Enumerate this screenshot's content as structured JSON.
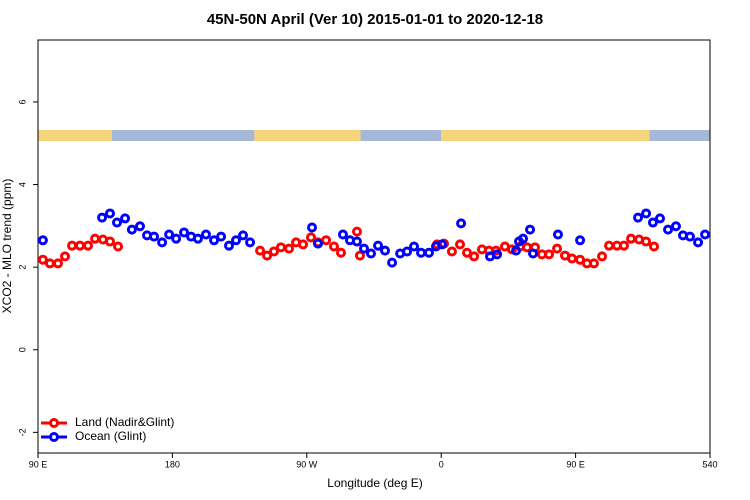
{
  "chart_data": {
    "type": "scatter",
    "title": "45N-50N April (Ver 10)   2015-01-01 to 2020-12-18",
    "x_label": "Longitude (deg E)",
    "y_label": "XCO2 - MLO trend (ppm)",
    "xlim": [
      90,
      540
    ],
    "ylim": [
      -2.5,
      7.5
    ],
    "xticks": [
      {
        "value": 90,
        "label": "90 E"
      },
      180,
      {
        "value": 270,
        "label": "90 W"
      },
      {
        "value": 360,
        "label": "0"
      },
      {
        "value": 450,
        "label": "90 E"
      },
      540
    ],
    "yticks": [
      -2,
      0,
      2,
      4,
      6
    ],
    "legend": "bottom-left",
    "series": [
      {
        "name": "Land (Nadir&Glint)",
        "color": "#ff0000",
        "x": [
          93.3,
          98,
          103.4,
          108.1,
          112.8,
          118.1,
          123.5,
          128.2,
          133.5,
          138.2,
          143.6,
          238.7,
          243.4,
          248,
          252.7,
          258.1,
          262.8,
          267.5,
          272.8,
          277.5,
          282.9,
          288.2,
          292.9,
          303.6,
          305.6,
          357.2,
          361.9,
          367.2,
          372.6,
          377.3,
          382,
          387.3,
          392,
          396.7,
          402.7,
          407.4,
          412.8,
          417.5,
          422.8,
          427.5,
          432.2,
          437.6,
          442.9,
          447.6,
          453,
          457.6,
          462.3,
          467.7,
          472.4,
          477.7,
          482.4,
          487.1,
          492.5,
          497.2,
          502.5
        ],
        "values": [
          2.18,
          2.09,
          2.09,
          2.26,
          2.52,
          2.52,
          2.52,
          2.69,
          2.67,
          2.62,
          2.5,
          2.4,
          2.28,
          2.38,
          2.48,
          2.45,
          2.6,
          2.55,
          2.72,
          2.6,
          2.65,
          2.5,
          2.35,
          2.86,
          2.28,
          2.55,
          2.57,
          2.38,
          2.55,
          2.35,
          2.26,
          2.43,
          2.4,
          2.4,
          2.5,
          2.43,
          2.5,
          2.48,
          2.48,
          2.31,
          2.31,
          2.45,
          2.28,
          2.21,
          2.18,
          2.09,
          2.09,
          2.26,
          2.52,
          2.52,
          2.52,
          2.69,
          2.67,
          2.62,
          2.5
        ]
      },
      {
        "name": "Ocean (Glint)",
        "color": "#0000ff",
        "x": [
          93.3,
          132.9,
          138.2,
          142.9,
          148.3,
          152.9,
          158.3,
          163,
          167.7,
          173.1,
          177.8,
          182.5,
          187.8,
          192.5,
          197.1,
          202.5,
          207.9,
          212.6,
          217.9,
          222.6,
          227.3,
          232,
          273.5,
          277.5,
          294.2,
          298.9,
          303.6,
          308.3,
          313,
          317.7,
          322.4,
          327.1,
          332.5,
          337.2,
          341.8,
          346.5,
          351.8,
          356.5,
          360.5,
          373.3,
          392.7,
          397.4,
          410.1,
          412.1,
          414.8,
          419.5,
          421.5,
          438.2,
          453,
          491.8,
          497.2,
          501.8,
          506.5,
          511.9,
          517.2,
          521.9,
          526.6,
          532,
          536.7
        ],
        "values": [
          2.65,
          3.2,
          3.3,
          3.08,
          3.18,
          2.91,
          2.99,
          2.77,
          2.74,
          2.6,
          2.79,
          2.69,
          2.84,
          2.74,
          2.69,
          2.79,
          2.65,
          2.74,
          2.52,
          2.65,
          2.77,
          2.6,
          2.96,
          2.57,
          2.79,
          2.65,
          2.62,
          2.45,
          2.33,
          2.52,
          2.4,
          2.11,
          2.33,
          2.38,
          2.5,
          2.35,
          2.35,
          2.5,
          2.55,
          3.06,
          2.26,
          2.31,
          2.4,
          2.62,
          2.69,
          2.91,
          2.33,
          2.79,
          2.65,
          3.2,
          3.3,
          3.08,
          3.18,
          2.91,
          2.99,
          2.77,
          2.74,
          2.6,
          2.79
        ]
      }
    ]
  }
}
